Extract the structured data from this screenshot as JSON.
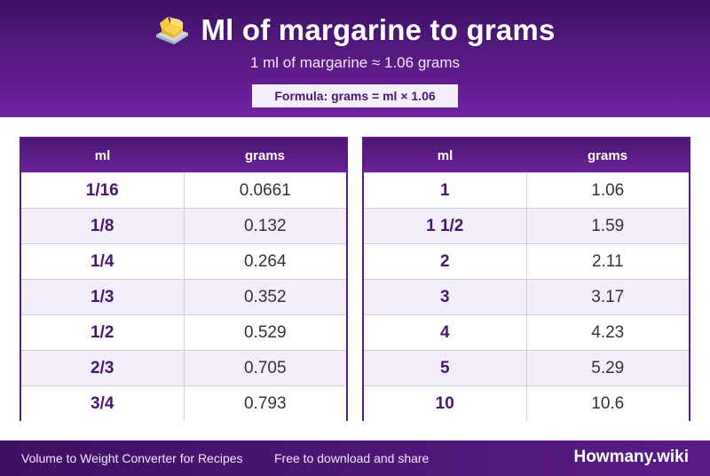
{
  "header": {
    "title": "Ml of margarine to grams",
    "icon": "butter-icon",
    "subtitle": "1 ml of margarine ≈ 1.06 grams",
    "formula": "Formula: grams = ml × 1.06"
  },
  "tables": {
    "left": {
      "col_ml": "ml",
      "col_grams": "grams",
      "rows": [
        {
          "ml": "1/16",
          "grams": "0.0661"
        },
        {
          "ml": "1/8",
          "grams": "0.132"
        },
        {
          "ml": "1/4",
          "grams": "0.264"
        },
        {
          "ml": "1/3",
          "grams": "0.352"
        },
        {
          "ml": "1/2",
          "grams": "0.529"
        },
        {
          "ml": "2/3",
          "grams": "0.705"
        },
        {
          "ml": "3/4",
          "grams": "0.793"
        }
      ]
    },
    "right": {
      "col_ml": "ml",
      "col_grams": "grams",
      "rows": [
        {
          "ml": "1",
          "grams": "1.06"
        },
        {
          "ml": "1 1/2",
          "grams": "1.59"
        },
        {
          "ml": "2",
          "grams": "2.11"
        },
        {
          "ml": "3",
          "grams": "3.17"
        },
        {
          "ml": "4",
          "grams": "4.23"
        },
        {
          "ml": "5",
          "grams": "5.29"
        },
        {
          "ml": "10",
          "grams": "10.6"
        }
      ]
    }
  },
  "footer": {
    "left": "Volume to Weight Converter for Recipes",
    "mid": "Free to download and share",
    "brand": "Howmany.wiki"
  },
  "colors": {
    "primary": "#5a1b86",
    "dark": "#3e1063",
    "row_alt": "#f3eefa"
  }
}
